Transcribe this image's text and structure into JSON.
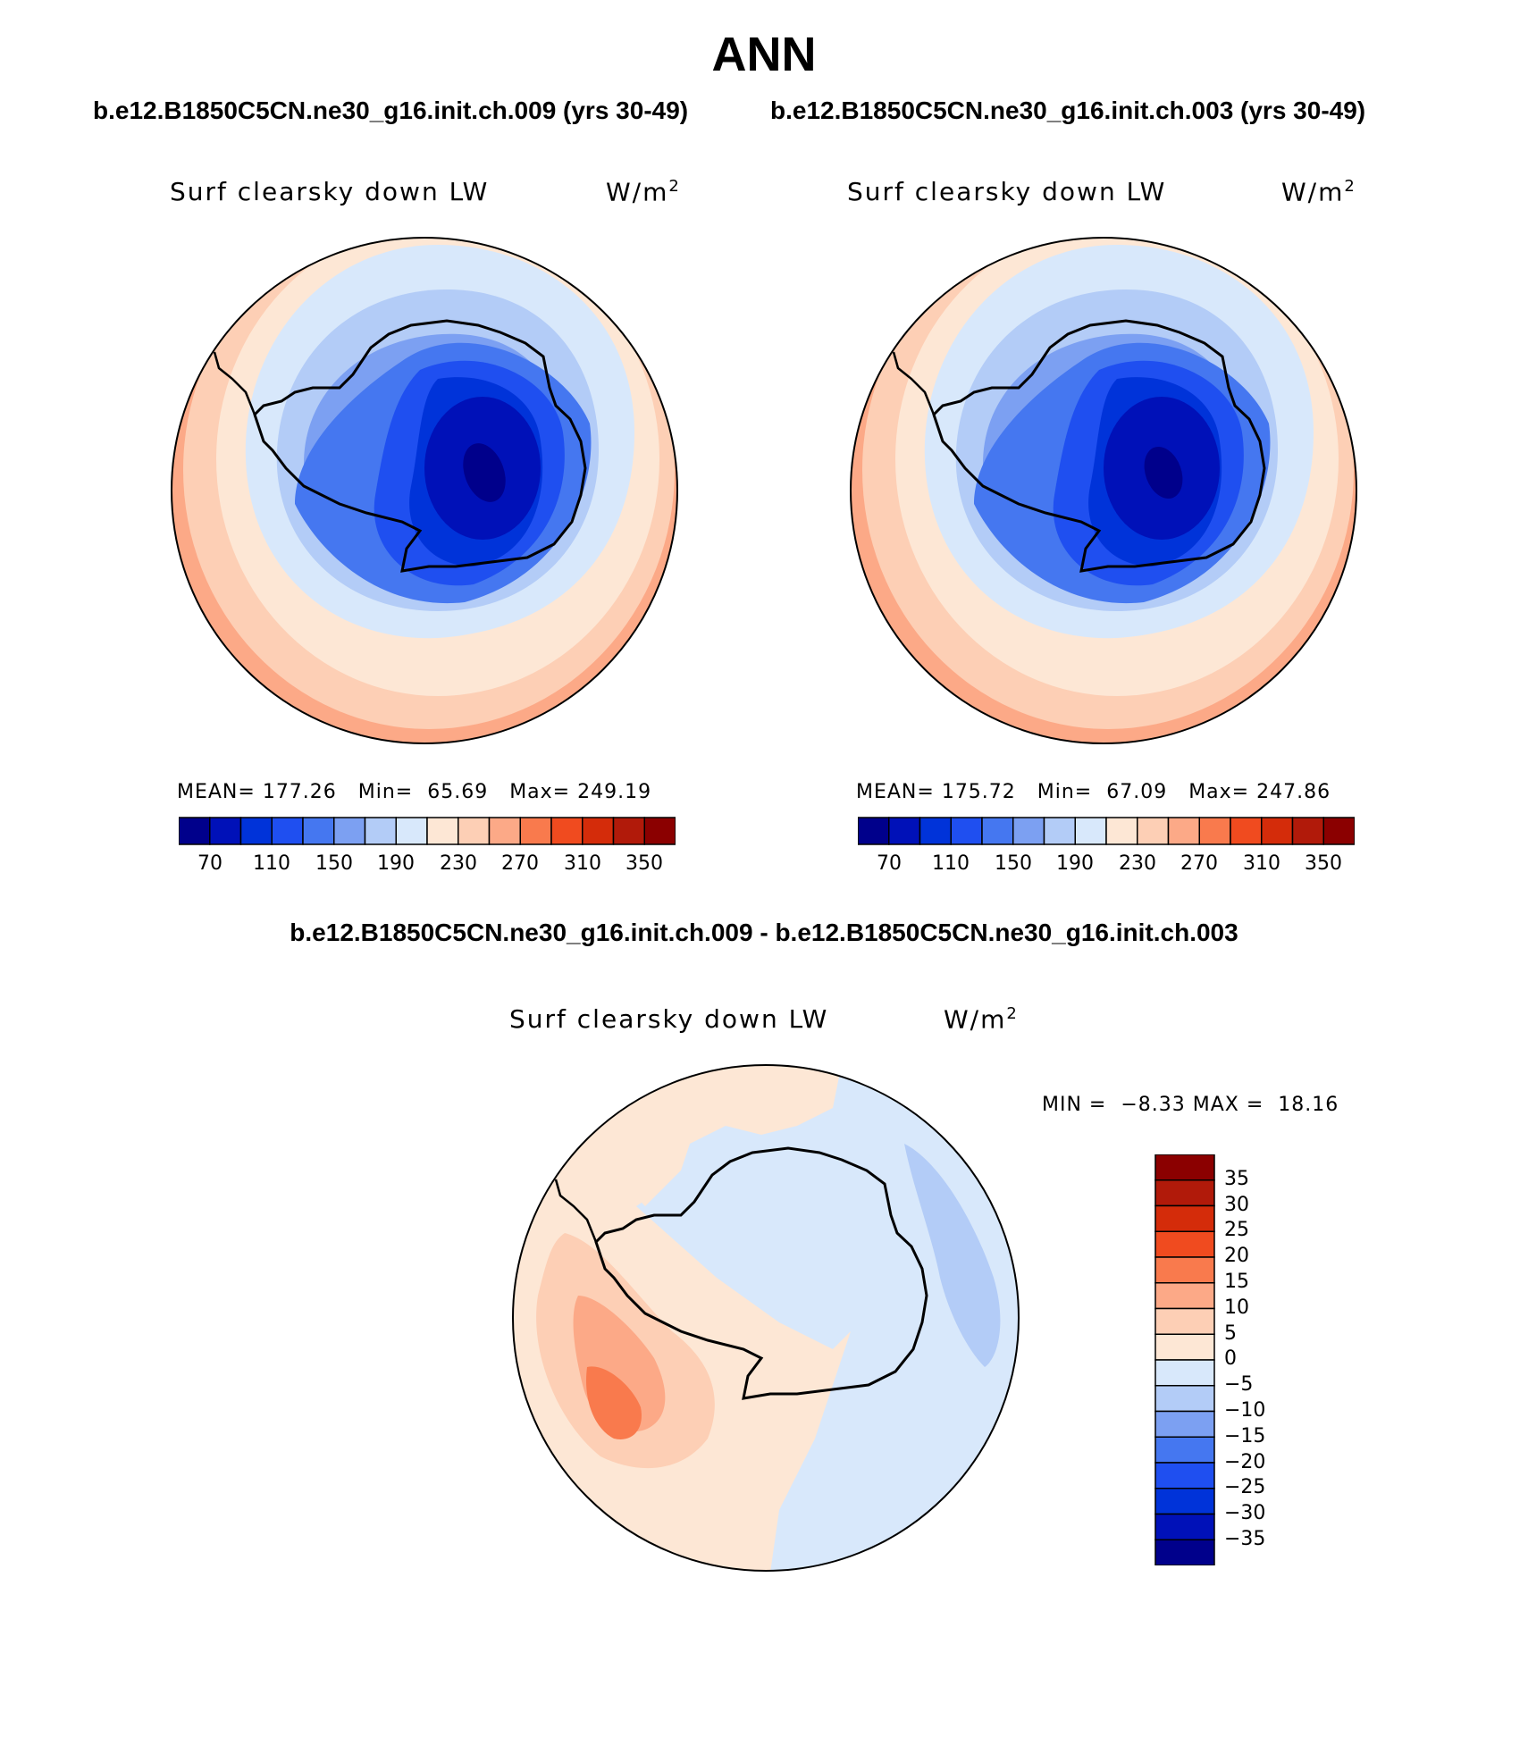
{
  "header": {
    "title": "ANN",
    "case1": "b.e12.B1850C5CN.ne30_g16.init.ch.009 (yrs 30-49)",
    "case2": "b.e12.B1850C5CN.ne30_g16.init.ch.003 (yrs 30-49)",
    "diff_title": "b.e12.B1850C5CN.ne30_g16.init.ch.009 - b.e12.B1850C5CN.ne30_g16.init.ch.003"
  },
  "panels": [
    {
      "variable": "Surf clearsky down LW",
      "units": "W/m",
      "units_sup": "2",
      "stats": "MEAN= 177.26   Min=  65.69   Max= 249.19",
      "colorbar_labels": [
        "70",
        "110",
        "150",
        "190",
        "230",
        "270",
        "310",
        "350"
      ]
    },
    {
      "variable": "Surf clearsky down LW",
      "units": "W/m",
      "units_sup": "2",
      "stats": "MEAN= 175.72   Min=  67.09   Max= 247.86",
      "colorbar_labels": [
        "70",
        "110",
        "150",
        "190",
        "230",
        "270",
        "310",
        "350"
      ]
    }
  ],
  "difference": {
    "variable": "Surf clearsky down LW",
    "units": "W/m",
    "units_sup": "2",
    "minmax": "MIN =  −8.33 MAX =  18.16",
    "colorbar_labels": [
      "35",
      "30",
      "25",
      "20",
      "15",
      "10",
      "5",
      "0",
      "−5",
      "−10",
      "−15",
      "−20",
      "−25",
      "−30",
      "−35"
    ]
  },
  "colors": {
    "scale": [
      "#00008b",
      "#0011b8",
      "#0033d9",
      "#1f4ff0",
      "#4577f0",
      "#7ca0f2",
      "#b3ccf7",
      "#d8e8fb",
      "#fde7d5",
      "#fdcfb5",
      "#fca987",
      "#f97a4d",
      "#f04b1f",
      "#d42c0a",
      "#b11a0a",
      "#8b0000"
    ]
  }
}
